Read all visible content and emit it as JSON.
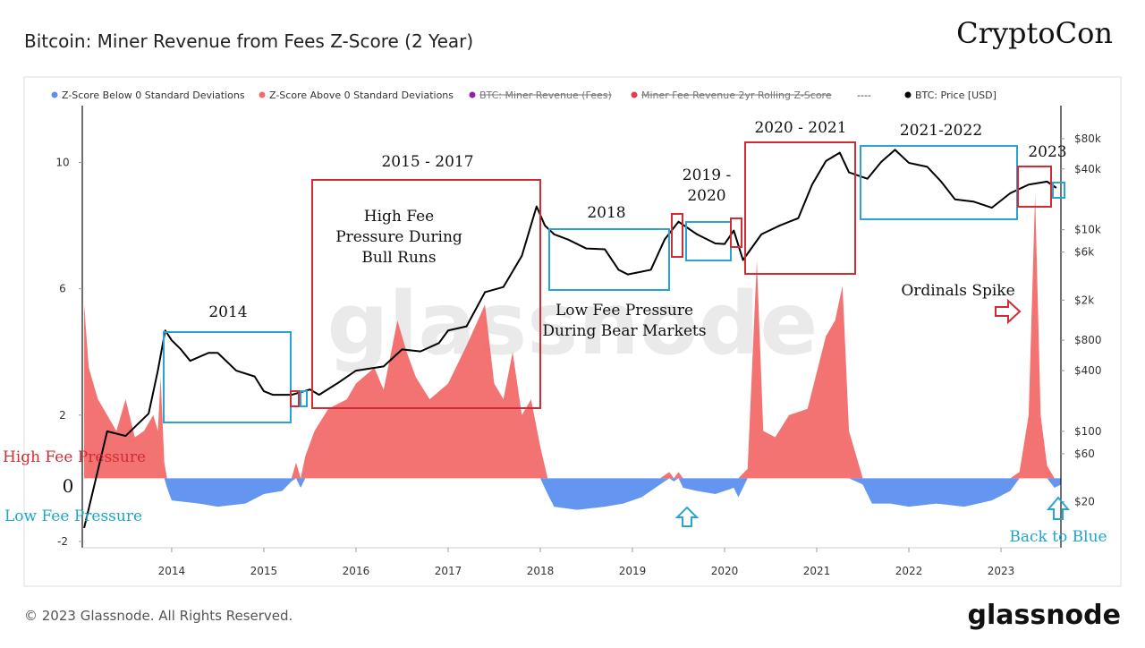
{
  "chart_data": {
    "type": "area",
    "title": "Bitcoin: Miner Revenue from Fees Z-Score (2 Year)",
    "brand": "CryptoCon",
    "watermark": "glassnode",
    "footer": "© 2023 Glassnode. All Rights Reserved.",
    "logo": "glassnode",
    "xlim": [
      2013.03,
      2023.65
    ],
    "xticks": [
      2014,
      2015,
      2016,
      2017,
      2018,
      2019,
      2020,
      2021,
      2022,
      2023
    ],
    "ylim": [
      -2.2,
      11.8
    ],
    "yticks": [
      -2,
      2,
      6,
      10
    ],
    "y2lim": [
      7,
      170000
    ],
    "y2scale": "log",
    "y2ticks": [
      {
        "value": 20,
        "label": "$20"
      },
      {
        "value": 60,
        "label": "$60"
      },
      {
        "value": 100,
        "label": "$100"
      },
      {
        "value": 400,
        "label": "$400"
      },
      {
        "value": 800,
        "label": "$800"
      },
      {
        "value": 2000,
        "label": "$2k"
      },
      {
        "value": 6000,
        "label": "$6k"
      },
      {
        "value": 10000,
        "label": "$10k"
      },
      {
        "value": 40000,
        "label": "$40k"
      },
      {
        "value": 80000,
        "label": "$80k"
      }
    ],
    "series": [
      {
        "name": "Z-Score Below 0 Standard Deviations",
        "color": "#5b8ff0",
        "kind": "area",
        "x": [
          2013.05,
          2013.1,
          2013.2,
          2013.3,
          2013.4,
          2013.5,
          2013.6,
          2013.7,
          2013.8,
          2013.85,
          2013.88,
          2013.92,
          2013.95,
          2014.0,
          2014.3,
          2014.5,
          2014.8,
          2015.0,
          2015.2,
          2015.3,
          2015.35,
          2015.4,
          2015.45,
          2015.55,
          2015.7,
          2015.9,
          2016.0,
          2016.2,
          2016.3,
          2016.45,
          2016.55,
          2016.65,
          2016.8,
          2017.0,
          2017.2,
          2017.4,
          2017.5,
          2017.6,
          2017.7,
          2017.8,
          2017.9,
          2018.0,
          2018.08,
          2018.15,
          2018.4,
          2018.7,
          2018.9,
          2019.1,
          2019.3,
          2019.4,
          2019.45,
          2019.5,
          2019.55,
          2019.7,
          2019.9,
          2020.0,
          2020.1,
          2020.15,
          2020.25,
          2020.35,
          2020.42,
          2020.55,
          2020.7,
          2020.9,
          2021.1,
          2021.2,
          2021.28,
          2021.35,
          2021.5,
          2021.6,
          2021.8,
          2022.0,
          2022.3,
          2022.6,
          2022.9,
          2023.1,
          2023.2,
          2023.3,
          2023.37,
          2023.43,
          2023.5,
          2023.58,
          2023.65
        ],
        "values": [
          0,
          0,
          0,
          0,
          0,
          0,
          0,
          0,
          0,
          0,
          0,
          0,
          -0.3,
          -0.7,
          -0.8,
          -0.9,
          -0.8,
          -0.5,
          -0.4,
          -0.1,
          0,
          -0.3,
          0,
          0,
          0,
          0,
          0,
          0,
          0,
          0,
          0,
          0,
          0,
          0,
          0,
          0,
          0,
          0,
          0,
          0,
          0,
          0,
          -0.5,
          -0.9,
          -1,
          -0.9,
          -0.8,
          -0.6,
          -0.2,
          0,
          -0.1,
          0,
          -0.3,
          -0.4,
          -0.5,
          -0.4,
          -0.3,
          -0.6,
          0,
          0,
          0,
          0,
          0,
          0,
          0,
          0,
          0,
          0,
          -0.2,
          -0.8,
          -0.8,
          -0.9,
          -0.8,
          -0.9,
          -0.7,
          -0.4,
          0,
          0,
          0,
          0,
          0,
          -0.3,
          -0.2
        ]
      },
      {
        "name": "Z-Score Above 0 Standard Deviations",
        "color": "#f26b6b",
        "kind": "area",
        "x": [
          2013.05,
          2013.1,
          2013.2,
          2013.3,
          2013.4,
          2013.5,
          2013.6,
          2013.7,
          2013.8,
          2013.85,
          2013.88,
          2013.92,
          2013.95,
          2014.0,
          2014.3,
          2014.5,
          2014.8,
          2015.0,
          2015.2,
          2015.3,
          2015.35,
          2015.4,
          2015.45,
          2015.55,
          2015.7,
          2015.9,
          2016.0,
          2016.2,
          2016.3,
          2016.45,
          2016.55,
          2016.65,
          2016.8,
          2017.0,
          2017.2,
          2017.4,
          2017.5,
          2017.6,
          2017.7,
          2017.8,
          2017.9,
          2018.0,
          2018.08,
          2018.15,
          2018.4,
          2018.7,
          2018.9,
          2019.1,
          2019.3,
          2019.4,
          2019.45,
          2019.5,
          2019.55,
          2019.7,
          2019.9,
          2020.0,
          2020.1,
          2020.15,
          2020.25,
          2020.35,
          2020.42,
          2020.55,
          2020.7,
          2020.9,
          2021.1,
          2021.2,
          2021.28,
          2021.35,
          2021.5,
          2021.6,
          2021.8,
          2022.0,
          2022.3,
          2022.6,
          2022.9,
          2023.1,
          2023.2,
          2023.3,
          2023.37,
          2023.43,
          2023.5,
          2023.58,
          2023.65
        ],
        "values": [
          5.5,
          3.5,
          2.5,
          2,
          1.5,
          2.5,
          1.3,
          1.5,
          2,
          1.5,
          3.2,
          0.5,
          0,
          0,
          0,
          0,
          0,
          0,
          0,
          0,
          0.5,
          0,
          0.7,
          1.5,
          2.2,
          2.5,
          3,
          3.5,
          2.8,
          5,
          4,
          3.2,
          2.5,
          3,
          4.2,
          5.5,
          3,
          2.5,
          4,
          2,
          2.5,
          1,
          0,
          0,
          0,
          0,
          0,
          0,
          0,
          0.2,
          0,
          0.2,
          0,
          0,
          0,
          0,
          0,
          0,
          0.3,
          6.9,
          1.5,
          1.3,
          2,
          2.2,
          4.5,
          5,
          6.1,
          1.5,
          0,
          0,
          0,
          0,
          0,
          0,
          0,
          0,
          0.2,
          2,
          9,
          2,
          0.4,
          0,
          0
        ]
      },
      {
        "name": "BTC: Price [USD]",
        "color": "#000000",
        "kind": "line",
        "axis": "y2",
        "x": [
          2013.05,
          2013.3,
          2013.5,
          2013.75,
          2013.85,
          2013.93,
          2014.0,
          2014.1,
          2014.2,
          2014.4,
          2014.5,
          2014.7,
          2014.9,
          2015.0,
          2015.1,
          2015.3,
          2015.5,
          2015.6,
          2015.8,
          2016.0,
          2016.3,
          2016.5,
          2016.7,
          2016.9,
          2017.0,
          2017.2,
          2017.4,
          2017.6,
          2017.8,
          2017.96,
          2018.05,
          2018.15,
          2018.3,
          2018.5,
          2018.7,
          2018.85,
          2018.95,
          2019.2,
          2019.35,
          2019.5,
          2019.7,
          2019.9,
          2020.0,
          2020.1,
          2020.2,
          2020.4,
          2020.6,
          2020.8,
          2020.95,
          2021.1,
          2021.25,
          2021.35,
          2021.55,
          2021.7,
          2021.85,
          2022.0,
          2022.2,
          2022.35,
          2022.5,
          2022.7,
          2022.9,
          2023.1,
          2023.3,
          2023.5,
          2023.6
        ],
        "values": [
          11,
          100,
          90,
          150,
          400,
          1000,
          800,
          650,
          500,
          600,
          600,
          400,
          350,
          250,
          230,
          230,
          260,
          230,
          300,
          400,
          440,
          650,
          620,
          750,
          1000,
          1100,
          2400,
          2700,
          5500,
          17000,
          11000,
          9000,
          8000,
          6500,
          6400,
          4000,
          3600,
          4000,
          8000,
          12000,
          9000,
          7300,
          7200,
          9800,
          5000,
          9000,
          11000,
          13000,
          28000,
          48000,
          58000,
          37000,
          32000,
          47000,
          62000,
          46000,
          42000,
          30000,
          20000,
          19000,
          16500,
          23000,
          28000,
          30000,
          26000
        ]
      }
    ],
    "legend_extra": [
      {
        "name": "BTC: Miner Revenue (Fees)",
        "color": "#8e24aa",
        "struck": true
      },
      {
        "name": "Miner Fee Revenue 2yr Rolling Z-Score",
        "color": "#e53950",
        "struck": true
      },
      {
        "name": "----"
      }
    ],
    "annotations": [
      {
        "lines": [
          "2014"
        ]
      },
      {
        "lines": [
          "2015 - 2017"
        ]
      },
      {
        "lines": [
          "High Fee",
          "Pressure During",
          "Bull Runs"
        ]
      },
      {
        "lines": [
          "2018"
        ]
      },
      {
        "lines": [
          "Low Fee Pressure",
          "During Bear Markets"
        ]
      },
      {
        "lines": [
          "2019 -",
          "2020"
        ]
      },
      {
        "lines": [
          "2020 - 2021"
        ]
      },
      {
        "lines": [
          "2021-2022"
        ]
      },
      {
        "lines": [
          "2023"
        ]
      },
      {
        "lines": [
          "Ordinals Spike"
        ]
      },
      {
        "lines": [
          "High Fee Pressure"
        ],
        "color": "#d42a35"
      },
      {
        "lines": [
          "0"
        ]
      },
      {
        "lines": [
          "Low Fee Pressure"
        ],
        "color": "#1ea5cc"
      },
      {
        "lines": [
          "Back to Blue"
        ],
        "color": "#1ea5cc"
      }
    ]
  }
}
